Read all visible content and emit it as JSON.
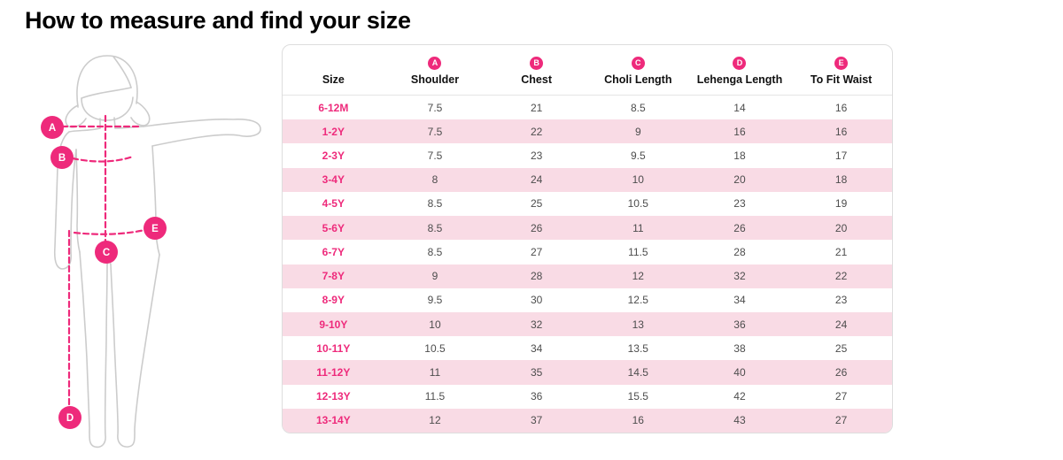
{
  "page": {
    "title": "How to measure and find your size"
  },
  "colors": {
    "accent_pink": "#ee2a7b",
    "row_alt_pink": "#f9dbe5",
    "figure_outline_gray": "#cccccc",
    "table_border": "#dddddd",
    "cell_text": "#4d4d4d",
    "header_text": "#111111"
  },
  "diagram": {
    "description": "line drawing of a girl with arm extended, with measurement markers",
    "markers": [
      {
        "letter": "A",
        "measures": "Shoulder"
      },
      {
        "letter": "B",
        "measures": "Chest"
      },
      {
        "letter": "C",
        "measures": "Choli Length"
      },
      {
        "letter": "D",
        "measures": "Lehenga Length"
      },
      {
        "letter": "E",
        "measures": "To Fit Waist"
      }
    ]
  },
  "size_chart": {
    "columns": [
      {
        "badge": "",
        "label": "Size"
      },
      {
        "badge": "A",
        "label": "Shoulder"
      },
      {
        "badge": "B",
        "label": "Chest"
      },
      {
        "badge": "C",
        "label": "Choli Length"
      },
      {
        "badge": "D",
        "label": "Lehenga Length"
      },
      {
        "badge": "E",
        "label": "To Fit Waist"
      }
    ],
    "rows": [
      {
        "size": "6-12M",
        "values": [
          "7.5",
          "21",
          "8.5",
          "14",
          "16"
        ]
      },
      {
        "size": "1-2Y",
        "values": [
          "7.5",
          "22",
          "9",
          "16",
          "16"
        ]
      },
      {
        "size": "2-3Y",
        "values": [
          "7.5",
          "23",
          "9.5",
          "18",
          "17"
        ]
      },
      {
        "size": "3-4Y",
        "values": [
          "8",
          "24",
          "10",
          "20",
          "18"
        ]
      },
      {
        "size": "4-5Y",
        "values": [
          "8.5",
          "25",
          "10.5",
          "23",
          "19"
        ]
      },
      {
        "size": "5-6Y",
        "values": [
          "8.5",
          "26",
          "11",
          "26",
          "20"
        ]
      },
      {
        "size": "6-7Y",
        "values": [
          "8.5",
          "27",
          "11.5",
          "28",
          "21"
        ]
      },
      {
        "size": "7-8Y",
        "values": [
          "9",
          "28",
          "12",
          "32",
          "22"
        ]
      },
      {
        "size": "8-9Y",
        "values": [
          "9.5",
          "30",
          "12.5",
          "34",
          "23"
        ]
      },
      {
        "size": "9-10Y",
        "values": [
          "10",
          "32",
          "13",
          "36",
          "24"
        ]
      },
      {
        "size": "10-11Y",
        "values": [
          "10.5",
          "34",
          "13.5",
          "38",
          "25"
        ]
      },
      {
        "size": "11-12Y",
        "values": [
          "11",
          "35",
          "14.5",
          "40",
          "26"
        ]
      },
      {
        "size": "12-13Y",
        "values": [
          "11.5",
          "36",
          "15.5",
          "42",
          "27"
        ]
      },
      {
        "size": "13-14Y",
        "values": [
          "12",
          "37",
          "16",
          "43",
          "27"
        ]
      }
    ]
  }
}
